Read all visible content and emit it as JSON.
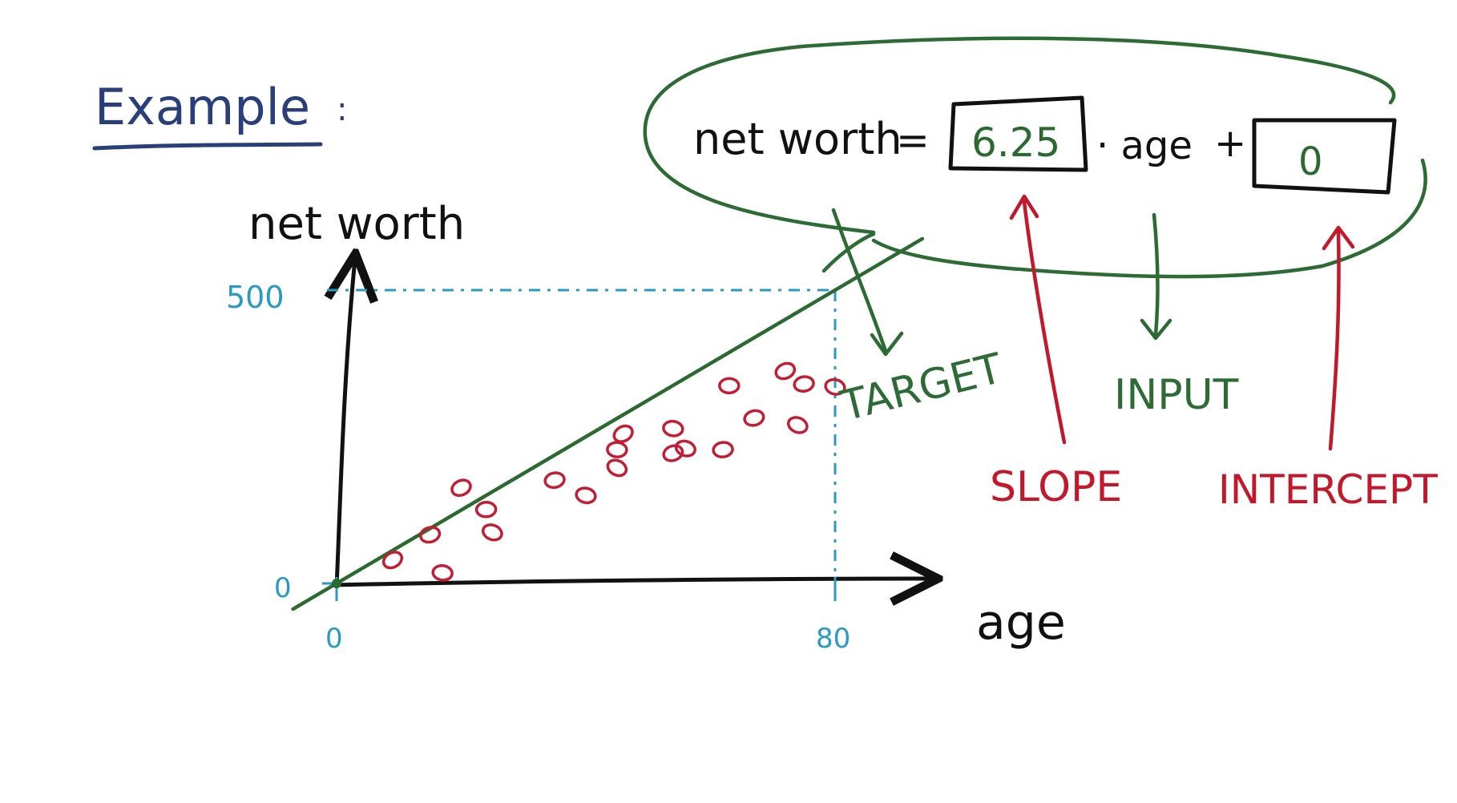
{
  "heading": "Example",
  "heading_colon": ":",
  "chart_data": {
    "type": "scatter",
    "title": "",
    "xlabel": "age",
    "ylabel": "net worth",
    "xlim": [
      0,
      80
    ],
    "ylim": [
      0,
      500
    ],
    "x_ticks": [
      "0",
      "80"
    ],
    "y_ticks": [
      "0",
      "500"
    ],
    "grid": false,
    "legend": "none",
    "points": [
      {
        "x": 9,
        "y": 40
      },
      {
        "x": 17,
        "y": 18
      },
      {
        "x": 15,
        "y": 83
      },
      {
        "x": 25,
        "y": 87
      },
      {
        "x": 24,
        "y": 126
      },
      {
        "x": 20,
        "y": 163
      },
      {
        "x": 40,
        "y": 150
      },
      {
        "x": 35,
        "y": 176
      },
      {
        "x": 45,
        "y": 197
      },
      {
        "x": 45,
        "y": 228
      },
      {
        "x": 54,
        "y": 222
      },
      {
        "x": 56,
        "y": 230
      },
      {
        "x": 62,
        "y": 228
      },
      {
        "x": 46,
        "y": 255
      },
      {
        "x": 54,
        "y": 264
      },
      {
        "x": 67,
        "y": 282
      },
      {
        "x": 74,
        "y": 270
      },
      {
        "x": 63,
        "y": 337
      },
      {
        "x": 72,
        "y": 362
      },
      {
        "x": 80,
        "y": 335
      },
      {
        "x": 75,
        "y": 340
      }
    ],
    "fit_line": {
      "slope": 6.25,
      "intercept": 0
    },
    "reference_point": {
      "x": 80,
      "y": 500
    }
  },
  "equation": {
    "lhs": "net worth",
    "equals": "=",
    "slope_value": "6.25",
    "times_input": "· age",
    "plus": "+",
    "intercept_value": "0"
  },
  "labels": {
    "target": "TARGET",
    "input": "INPUT",
    "slope": "SLOPE",
    "intercept": "INTERCEPT"
  },
  "colors": {
    "ink": "#111111",
    "heading": "#2a3f7a",
    "axis_ticks": "#2a9ac2",
    "points": "#c21d33",
    "fit_line": "#2a6a31",
    "annotation_green": "#2d6b35",
    "annotation_red": "#c2182c"
  }
}
